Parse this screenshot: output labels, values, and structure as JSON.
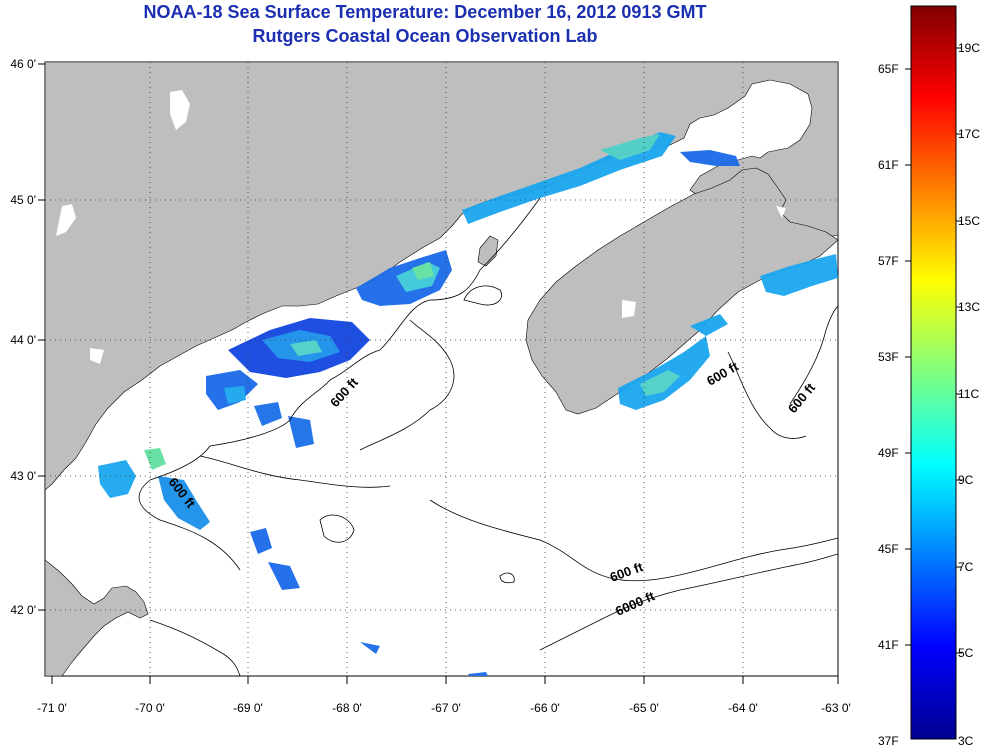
{
  "header": {
    "title": "NOAA-18 Sea Surface Temperature:  December 16, 2012 0913 GMT",
    "subtitle": "Rutgers Coastal Ocean Observation Lab"
  },
  "axes": {
    "lon_ticks": [
      "-71 0'",
      "-70 0'",
      "-69 0'",
      "-68 0'",
      "-67 0'",
      "-66 0'",
      "-65 0'",
      "-64 0'",
      "-63 0'"
    ],
    "lat_ticks": [
      "46 0'",
      "45 0'",
      "44 0'",
      "43 0'",
      "42 0'"
    ]
  },
  "contour_labels": [
    "600 ft",
    "600 ft",
    "600 ft",
    "600 ft",
    "600 ft",
    "6000 ft"
  ],
  "colorbar": {
    "fahrenheit_labels": [
      "65F",
      "61F",
      "57F",
      "53F",
      "49F",
      "45F",
      "41F",
      "37F"
    ],
    "celsius_labels": [
      "19C",
      "17C",
      "15C",
      "13C",
      "11C",
      "9C",
      "7C",
      "5C",
      "3C"
    ],
    "colors": [
      "#00008f",
      "#0000ff",
      "#0080ff",
      "#00ffff",
      "#80ff80",
      "#ffff00",
      "#ff8000",
      "#ff0000",
      "#800000"
    ]
  },
  "colors": {
    "land": "#bebebe",
    "water": "#ffffff",
    "title": "#1b2fb0",
    "sst_cold": "#1446e0",
    "sst_mid": "#1aa6f0",
    "sst_warm": "#55e0a8"
  }
}
